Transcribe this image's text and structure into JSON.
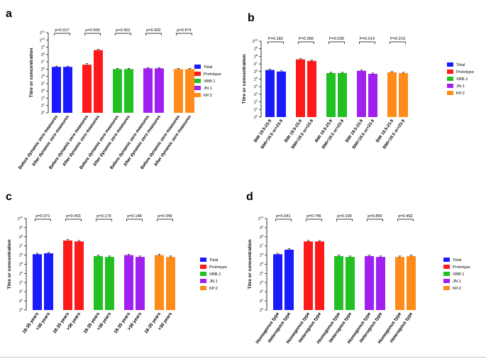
{
  "chart_data": [
    {
      "type": "bar",
      "panel_label": "a",
      "ylabel": "Titre or concentration",
      "y_scale": "log2",
      "ylim": [
        0,
        11
      ],
      "ytick_base": "2",
      "ytick_exponents": [
        "0",
        "1",
        "2",
        "3",
        "4",
        "5",
        "6",
        "7",
        "8",
        "9",
        "10",
        "11"
      ],
      "legend": [
        "Total",
        "Prototype",
        "XBB.1",
        "JN.1",
        "KP.2"
      ],
      "groups": [
        {
          "name": "Total",
          "color": "#1a1aff",
          "categories": [
            "Before dynamic zero measures",
            "After dynamic zero measures"
          ],
          "values": [
            6.3,
            6.3
          ],
          "errors": [
            0.1,
            0.1
          ],
          "p": "p=0.917"
        },
        {
          "name": "Prototype",
          "color": "#ff1a1a",
          "categories": [
            "Before dynamic zero measures",
            "After dynamic zero measures"
          ],
          "values": [
            6.6,
            8.6
          ],
          "errors": [
            0.15,
            0.1
          ],
          "p": "p=0.009"
        },
        {
          "name": "XBB.1",
          "color": "#22c022",
          "categories": [
            "Before dynamic zero measures",
            "After dynamic zero measures"
          ],
          "values": [
            6.0,
            6.0
          ],
          "errors": [
            0.1,
            0.1
          ],
          "p": "p=0.901"
        },
        {
          "name": "JN.1",
          "color": "#a020f0",
          "categories": [
            "Before dynamic zero measures",
            "After dynamic zero measures"
          ],
          "values": [
            6.1,
            6.1
          ],
          "errors": [
            0.1,
            0.1
          ],
          "p": "p=0.902"
        },
        {
          "name": "KP.2",
          "color": "#ff8c1a",
          "categories": [
            "Before dynamic zero measures",
            "After dynamic zero measures"
          ],
          "values": [
            6.0,
            6.0
          ],
          "errors": [
            0.1,
            0.1
          ],
          "p": "p=0.974"
        }
      ]
    },
    {
      "type": "bar",
      "panel_label": "b",
      "ylabel": "Titre or concentration",
      "y_scale": "log2",
      "ylim": [
        0,
        10
      ],
      "ytick_base": "2",
      "ytick_exponents": [
        "0",
        "1",
        "2",
        "3",
        "4",
        "5",
        "6",
        "7",
        "8",
        "9",
        "10"
      ],
      "legend": [
        "Total",
        "Prototype",
        "XBB.1",
        "JN.1",
        "KP.2"
      ],
      "groups": [
        {
          "name": "Total",
          "color": "#1a1aff",
          "categories": [
            "BMI 18.5-23.9",
            "BMI<18.5 or>23.9"
          ],
          "values": [
            6.2,
            6.0
          ],
          "errors": [
            0.1,
            0.1
          ],
          "p": "P=0.182"
        },
        {
          "name": "Prototype",
          "color": "#ff1a1a",
          "categories": [
            "BMI 18.5-23.9",
            "BMI<18.5 or>23.9"
          ],
          "values": [
            7.6,
            7.4
          ],
          "errors": [
            0.1,
            0.1
          ],
          "p": "P=0.366"
        },
        {
          "name": "XBB.1",
          "color": "#22c022",
          "categories": [
            "BMI 18.5-23.9",
            "BMI<18.5 or>23.9"
          ],
          "values": [
            5.8,
            5.8
          ],
          "errors": [
            0.1,
            0.1
          ],
          "p": "P=0.636"
        },
        {
          "name": "JN.1",
          "color": "#a020f0",
          "categories": [
            "BMI 18.5-23.9",
            "BMI<18.5 or>23.9"
          ],
          "values": [
            6.1,
            5.7
          ],
          "errors": [
            0.1,
            0.1
          ],
          "p": "P=0.014"
        },
        {
          "name": "KP.2",
          "color": "#ff8c1a",
          "categories": [
            "BMI 18.5-23.9",
            "BMI<18.5 or>23.9"
          ],
          "values": [
            5.9,
            5.8
          ],
          "errors": [
            0.1,
            0.1
          ],
          "p": "P=0.219"
        }
      ]
    },
    {
      "type": "bar",
      "panel_label": "c",
      "ylabel": "Titre or concentration",
      "y_scale": "log2",
      "ylim": [
        0,
        10
      ],
      "ytick_base": "2",
      "ytick_exponents": [
        "0",
        "1",
        "2",
        "3",
        "4",
        "5",
        "6",
        "7",
        "8",
        "9",
        "10"
      ],
      "legend": [
        "Total",
        "Prototype",
        "XBB.1",
        "JN.1",
        "KP.2"
      ],
      "groups": [
        {
          "name": "Total",
          "color": "#1a1aff",
          "categories": [
            "18-35 years",
            ">36 years"
          ],
          "values": [
            6.1,
            6.2
          ],
          "errors": [
            0.1,
            0.1
          ],
          "p": "p=0.371"
        },
        {
          "name": "Prototype",
          "color": "#ff1a1a",
          "categories": [
            "18-35 years",
            ">36 years"
          ],
          "values": [
            7.6,
            7.5
          ],
          "errors": [
            0.1,
            0.1
          ],
          "p": "p=0.453"
        },
        {
          "name": "XBB.1",
          "color": "#22c022",
          "categories": [
            "18-35 years",
            ">36 years"
          ],
          "values": [
            5.9,
            5.8
          ],
          "errors": [
            0.1,
            0.1
          ],
          "p": "p=0.179"
        },
        {
          "name": "JN.1",
          "color": "#a020f0",
          "categories": [
            "18-35 years",
            ">36 years"
          ],
          "values": [
            6.0,
            5.8
          ],
          "errors": [
            0.1,
            0.1
          ],
          "p": "p=0.148"
        },
        {
          "name": "KP.2",
          "color": "#ff8c1a",
          "categories": [
            "18-35 years",
            ">36 years"
          ],
          "values": [
            6.0,
            5.8
          ],
          "errors": [
            0.1,
            0.1
          ],
          "p": "p=0.349"
        }
      ]
    },
    {
      "type": "bar",
      "panel_label": "d",
      "ylabel": "Titre or concentration",
      "y_scale": "log2",
      "ylim": [
        0,
        10
      ],
      "ytick_base": "2",
      "ytick_exponents": [
        "0",
        "1",
        "2",
        "3",
        "4",
        "5",
        "6",
        "7",
        "8",
        "9",
        "10"
      ],
      "legend": [
        "Total",
        "Prototype",
        "XBB.1",
        "JN.1",
        "KP.2"
      ],
      "groups": [
        {
          "name": "Total",
          "color": "#1a1aff",
          "categories": [
            "Homogonus type",
            "Heterogous type"
          ],
          "values": [
            6.1,
            6.6
          ],
          "errors": [
            0.1,
            0.1
          ],
          "p": "p=0.041"
        },
        {
          "name": "Prototype",
          "color": "#ff1a1a",
          "categories": [
            "Homogonus type",
            "Heterogous type"
          ],
          "values": [
            7.5,
            7.5
          ],
          "errors": [
            0.1,
            0.1
          ],
          "p": "p=0.746"
        },
        {
          "name": "XBB.1",
          "color": "#22c022",
          "categories": [
            "Homogonus type",
            "Heterogous type"
          ],
          "values": [
            5.9,
            5.8
          ],
          "errors": [
            0.1,
            0.1
          ],
          "p": "p=0.199"
        },
        {
          "name": "JN.1",
          "color": "#a020f0",
          "categories": [
            "Homogonus type",
            "Heterogous type"
          ],
          "values": [
            5.9,
            5.8
          ],
          "errors": [
            0.1,
            0.1
          ],
          "p": "p=0.855"
        },
        {
          "name": "KP.2",
          "color": "#ff8c1a",
          "categories": [
            "Homogonus type",
            "Heterogous type"
          ],
          "values": [
            5.8,
            5.9
          ],
          "errors": [
            0.1,
            0.1
          ],
          "p": "p=0.462"
        }
      ]
    }
  ]
}
